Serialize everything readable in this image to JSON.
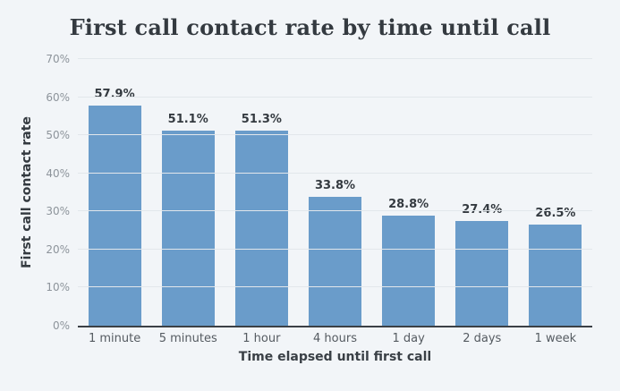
{
  "colors": {
    "background": "#f2f5f8",
    "bar": "#6a9cca",
    "gridline": "#e2e7eb",
    "axis_line": "#3b4046",
    "title_text": "#343a40",
    "value_label_text": "#343a40",
    "y_tick_text": "#8d949b",
    "x_tick_text": "#555b61"
  },
  "chart_data": {
    "type": "bar",
    "title": "First call contact rate by time until call",
    "xlabel": "Time elapsed until first call",
    "ylabel": "First call contact rate",
    "categories": [
      "1 minute",
      "5 minutes",
      "1 hour",
      "4 hours",
      "1 day",
      "2 days",
      "1 week"
    ],
    "values": [
      57.9,
      51.1,
      51.3,
      33.8,
      28.8,
      27.4,
      26.5
    ],
    "value_labels": [
      "57.9%",
      "51.1%",
      "51.3%",
      "33.8%",
      "28.8%",
      "27.4%",
      "26.5%"
    ],
    "ylim": [
      0,
      70
    ],
    "ytick_step": 10,
    "ytick_labels": [
      "0%",
      "10%",
      "20%",
      "30%",
      "40%",
      "50%",
      "60%",
      "70%"
    ],
    "grid": true,
    "legend": "none"
  }
}
